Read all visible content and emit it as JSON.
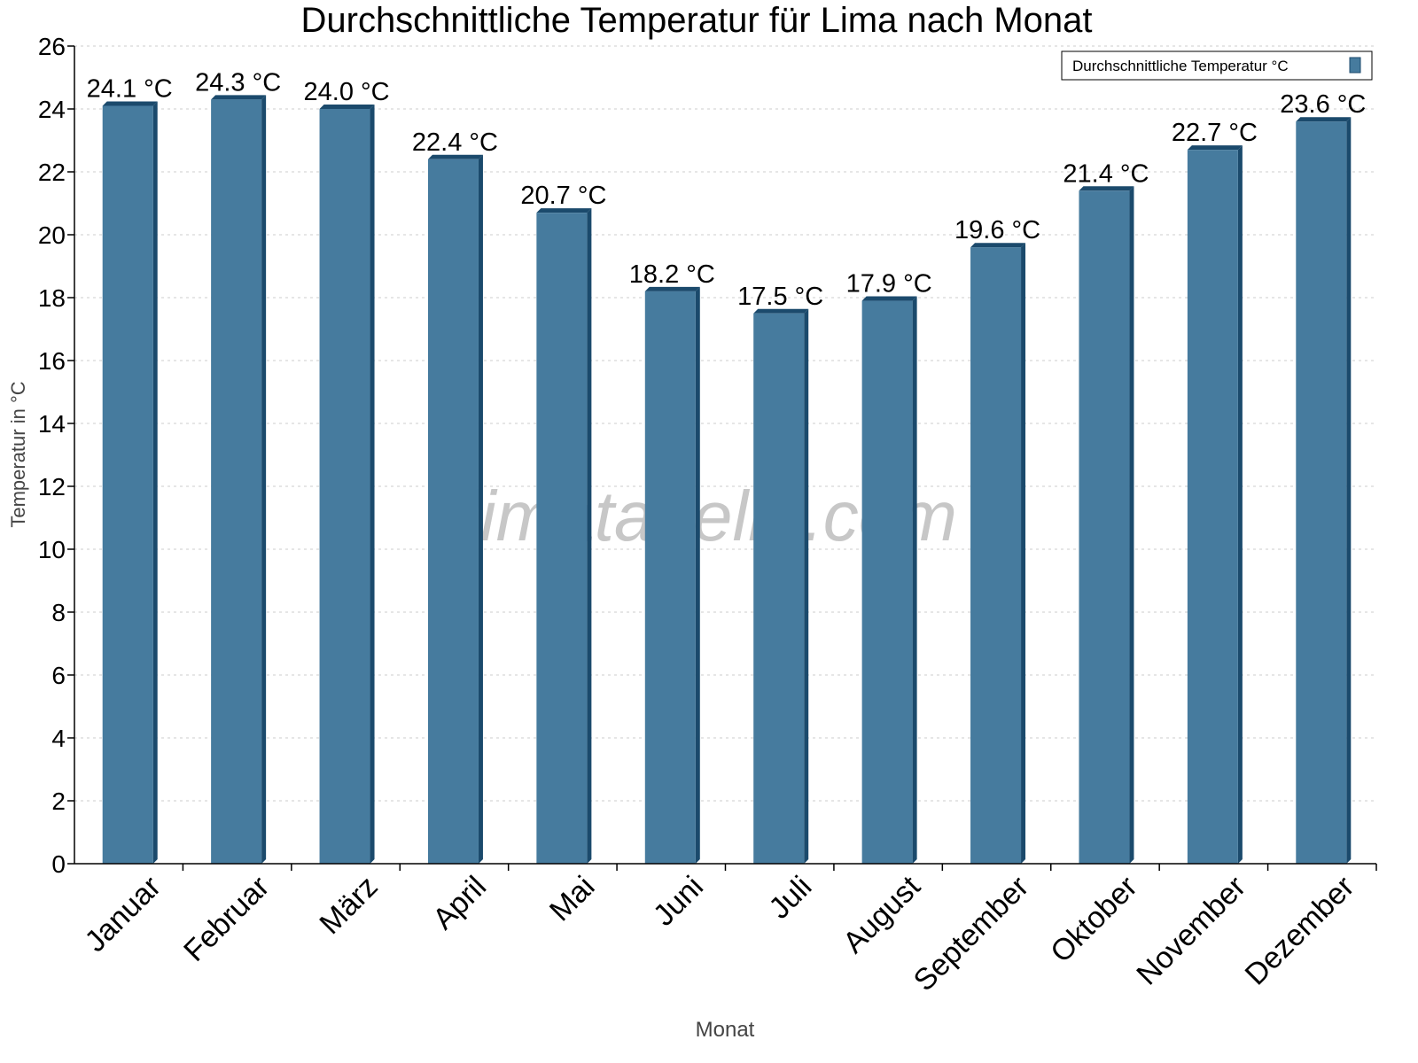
{
  "chart_data": {
    "type": "bar",
    "title": "Durchschnittliche Temperatur für Lima nach Monat",
    "xlabel": "Monat",
    "ylabel": "Temperatur in °C",
    "categories": [
      "Januar",
      "Februar",
      "März",
      "April",
      "Mai",
      "Juni",
      "Juli",
      "August",
      "September",
      "Oktober",
      "November",
      "Dezember"
    ],
    "series": [
      {
        "name": "Durchschnittliche Temperatur °C",
        "values": [
          24.1,
          24.3,
          24.0,
          22.4,
          20.7,
          18.2,
          17.5,
          17.9,
          19.6,
          21.4,
          22.7,
          23.6
        ],
        "data_labels": [
          "24.1 °C",
          "24.3 °C",
          "24.0 °C",
          "22.4 °C",
          "20.7 °C",
          "18.2 °C",
          "17.5 °C",
          "17.9 °C",
          "19.6 °C",
          "21.4 °C",
          "22.7 °C",
          "23.6 °C"
        ]
      }
    ],
    "ylim": [
      0,
      26
    ],
    "yticks": [
      0,
      2,
      4,
      6,
      8,
      10,
      12,
      14,
      16,
      18,
      20,
      22,
      24,
      26
    ],
    "grid": true,
    "legend_position": "top-right",
    "watermark": "klimatabelle.com",
    "colors": {
      "bar_front": "#467b9e",
      "bar_side": "#1b4a6c",
      "grid": "#cccccc",
      "watermark": "#bbbbbb"
    }
  }
}
